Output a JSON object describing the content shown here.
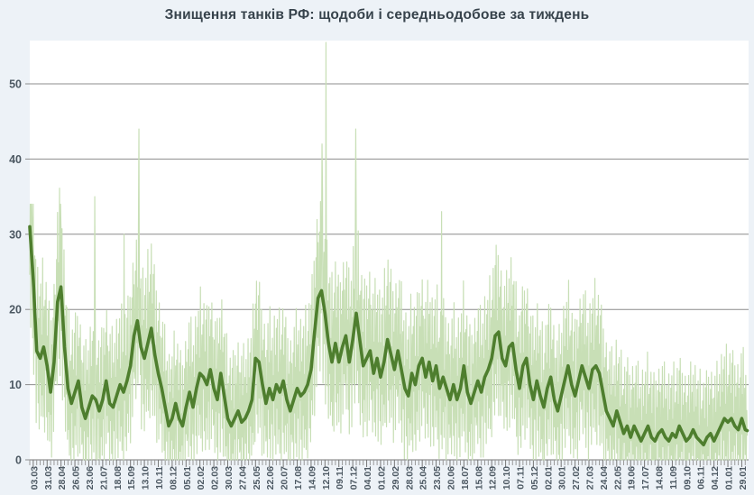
{
  "title": "Знищення танків РФ: щодоби і середньодобове за тиждень",
  "colors": {
    "page_bg": "#edf2f7",
    "plot_bg": "#ffffff",
    "grid": "#8c8c8c",
    "axis": "#777777",
    "tick_minor": "#9a9a9a",
    "tick_major": "#777777",
    "label": "#4c5862",
    "title": "#37434c",
    "daily_series": "#c8dfb6",
    "avg_series": "#4e7e2e"
  },
  "chart_data": {
    "type": "line",
    "title": "Знищення танків РФ: щодоби і середньодобове за тиждень",
    "ylabel": "",
    "xlabel": "",
    "ylim": [
      0,
      55.8
    ],
    "grid": "horizontal",
    "legend": "none",
    "y_ticks": [
      0,
      10,
      20,
      30,
      40,
      50
    ],
    "x_tick_labels": [
      "03.03",
      "31.03",
      "28.04",
      "26.05",
      "23.06",
      "21.07",
      "18.08",
      "15.09",
      "13.10",
      "10.11",
      "08.12",
      "05.01",
      "02.02",
      "02.03",
      "30.03",
      "27.04",
      "25.05",
      "22.06",
      "20.07",
      "17.08",
      "14.09",
      "12.10",
      "09.11",
      "07.12",
      "04.01",
      "01.02",
      "29.02",
      "28.03",
      "25.04",
      "23.05",
      "20.06",
      "18.07",
      "15.08",
      "12.09",
      "10.10",
      "07.11",
      "05.12",
      "02.01",
      "30.01",
      "27.02",
      "27.03",
      "24.04",
      "22.05",
      "19.06",
      "17.07",
      "14.08",
      "11.09",
      "09.10",
      "06.11",
      "04.12",
      "01.01",
      "29.01"
    ],
    "x_tick_interval_days": 28,
    "first_tick_day": 7,
    "days_total": 1447,
    "series": [
      {
        "name": "щодоби",
        "role": "daily",
        "color": "#c8dfb6",
        "derived_from_weekly_avg": true,
        "deviation_pattern": [
          -0.6,
          0.9,
          -1.1,
          1.3,
          -0.3,
          0.5,
          -0.9,
          1.5,
          -1.2,
          0.2,
          0.8,
          -0.5,
          1.1,
          -1.3,
          0.4,
          -0.1,
          1.4,
          -0.8,
          0.6,
          -1.2,
          1.0,
          -0.4,
          1.2,
          -1.0,
          0.3,
          -0.7,
          1.5,
          -1.1,
          0.1,
          0.7,
          -1.3,
          0.9,
          -0.2,
          1.3,
          -0.9,
          0.5,
          -1.2,
          1.1,
          -0.6,
          1.4,
          -1.0,
          0.2,
          -0.4,
          1.2,
          -1.3,
          0.6,
          -0.1,
          0.9,
          -1.1,
          1.3,
          -0.5,
          0.8,
          -0.7
        ],
        "deviation_scale_base": 6,
        "deviation_scale_per_avg": 0.15,
        "early_cap": {
          "until_day": 10,
          "max": 34
        },
        "value_cap": 55.5,
        "spike_days": [
          [
            4,
            34
          ],
          [
            62,
            34
          ],
          [
            131,
            35
          ],
          [
            190,
            30
          ],
          [
            220,
            44
          ],
          [
            589,
            42
          ],
          [
            597,
            55.5
          ],
          [
            657,
            44
          ],
          [
            830,
            33
          ]
        ]
      },
      {
        "name": "середньодобове за тиждень",
        "role": "weekly_avg",
        "color": "#4e7e2e",
        "values_weekly": [
          31,
          24,
          14.5,
          13.5,
          15,
          12.5,
          9,
          13,
          21,
          23,
          15,
          9.5,
          7.5,
          9,
          10.5,
          7,
          5.5,
          7,
          8.5,
          8,
          6.5,
          8,
          10.5,
          7.5,
          7,
          8.5,
          10,
          9,
          10.5,
          12.5,
          16.5,
          18.5,
          15,
          13.5,
          15.5,
          17.5,
          14,
          11.5,
          9.5,
          7,
          4.5,
          5.5,
          7.5,
          5.5,
          4.5,
          7,
          9,
          7,
          9.5,
          11.5,
          11,
          10,
          12,
          9.5,
          8,
          11.5,
          8.5,
          5.5,
          4.5,
          5.5,
          6.5,
          5,
          5.5,
          6.5,
          8,
          13.5,
          13,
          10,
          7.5,
          9.5,
          8,
          10,
          9,
          10.5,
          8,
          6.5,
          8,
          9.5,
          8.5,
          9,
          10,
          12,
          17,
          21.5,
          22.5,
          19.5,
          15.5,
          13,
          15.5,
          13,
          15,
          16.5,
          13,
          16,
          19.5,
          16,
          12.5,
          13.5,
          14.5,
          11.5,
          13.5,
          11,
          13,
          16,
          14,
          12,
          14.5,
          12,
          9.5,
          8.5,
          11.5,
          10,
          12.5,
          13.5,
          11,
          13,
          10.5,
          12.5,
          9.5,
          11,
          9.5,
          8,
          10,
          8,
          9.5,
          12.5,
          9,
          7.5,
          9,
          10.5,
          9,
          11,
          12,
          13.5,
          16.5,
          17,
          13.5,
          12.5,
          15,
          15.5,
          12,
          9.5,
          12.5,
          13.5,
          10,
          8,
          10.5,
          8.5,
          7,
          9.5,
          11,
          8,
          6.5,
          8.5,
          10.5,
          12.5,
          10,
          8.5,
          10.5,
          12.5,
          11,
          9.5,
          12,
          12.5,
          11.5,
          9,
          6.5,
          5.5,
          4.5,
          6.5,
          5,
          3.5,
          4.5,
          3,
          4.5,
          3.5,
          2.5,
          3.5,
          4.5,
          3,
          2.5,
          3.5,
          4,
          3,
          2.5,
          3.5,
          3,
          4.5,
          3.5,
          2.5,
          3,
          4,
          3,
          2.5,
          2,
          3,
          3.5,
          2.5,
          3.5,
          4.5,
          5.5,
          5,
          5.5,
          4.5,
          4,
          5.5,
          4,
          3.8
        ]
      }
    ]
  }
}
